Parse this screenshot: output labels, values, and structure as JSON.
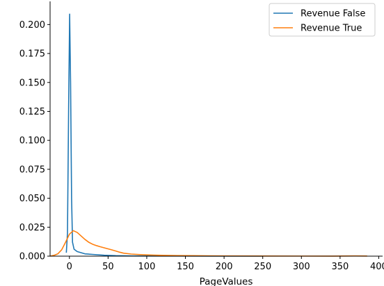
{
  "chart_data": {
    "type": "line",
    "title": "",
    "xlabel": "PageValues",
    "ylabel": "",
    "xlim": [
      -25,
      405
    ],
    "ylim": [
      0,
      0.22
    ],
    "x_ticks": [
      0,
      50,
      100,
      150,
      200,
      250,
      300,
      350,
      400
    ],
    "y_ticks": [
      0.0,
      0.025,
      0.05,
      0.075,
      0.1,
      0.125,
      0.15,
      0.175,
      0.2
    ],
    "x_tick_labels": [
      "0",
      "50",
      "100",
      "150",
      "200",
      "250",
      "300",
      "350",
      "400"
    ],
    "y_tick_labels": [
      "0.000",
      "0.025",
      "0.050",
      "0.075",
      "0.100",
      "0.125",
      "0.150",
      "0.175",
      "0.200"
    ],
    "grid": false,
    "legend_position": "top-right",
    "series": [
      {
        "name": "Revenue False",
        "color": "#1f77b4",
        "points": [
          [
            -4,
            0.003
          ],
          [
            -2.5,
            0.02
          ],
          [
            -1,
            0.13
          ],
          [
            0.3,
            0.209
          ],
          [
            1.5,
            0.15
          ],
          [
            2.8,
            0.05
          ],
          [
            4,
            0.012
          ],
          [
            6,
            0.006
          ],
          [
            10,
            0.004
          ],
          [
            15,
            0.003
          ],
          [
            20,
            0.002
          ],
          [
            30,
            0.0015
          ],
          [
            45,
            0.0008
          ],
          [
            60,
            0.0004
          ],
          [
            80,
            0.0002
          ],
          [
            120,
            0.0001
          ],
          [
            180,
            5e-05
          ],
          [
            250,
            3e-05
          ]
        ]
      },
      {
        "name": "Revenue True",
        "color": "#ff7f0e",
        "points": [
          [
            -25,
            0.0
          ],
          [
            -20,
            0.0007
          ],
          [
            -15,
            0.002
          ],
          [
            -10,
            0.0055
          ],
          [
            -5,
            0.012
          ],
          [
            0,
            0.019
          ],
          [
            5,
            0.022
          ],
          [
            10,
            0.0205
          ],
          [
            15,
            0.0175
          ],
          [
            20,
            0.0145
          ],
          [
            25,
            0.012
          ],
          [
            30,
            0.0103
          ],
          [
            35,
            0.0091
          ],
          [
            40,
            0.0081
          ],
          [
            45,
            0.0072
          ],
          [
            50,
            0.0063
          ],
          [
            55,
            0.0054
          ],
          [
            60,
            0.0044
          ],
          [
            65,
            0.0034
          ],
          [
            70,
            0.0026
          ],
          [
            80,
            0.0018
          ],
          [
            90,
            0.0014
          ],
          [
            100,
            0.0011
          ],
          [
            110,
            0.0009
          ],
          [
            120,
            0.0007
          ],
          [
            140,
            0.0005
          ],
          [
            160,
            0.0004
          ],
          [
            180,
            0.0003
          ],
          [
            200,
            0.0002
          ],
          [
            250,
            0.00012
          ],
          [
            300,
            7e-05
          ],
          [
            340,
            5e-05
          ],
          [
            370,
            0.0002
          ],
          [
            385,
            0.0001
          ]
        ]
      }
    ]
  }
}
